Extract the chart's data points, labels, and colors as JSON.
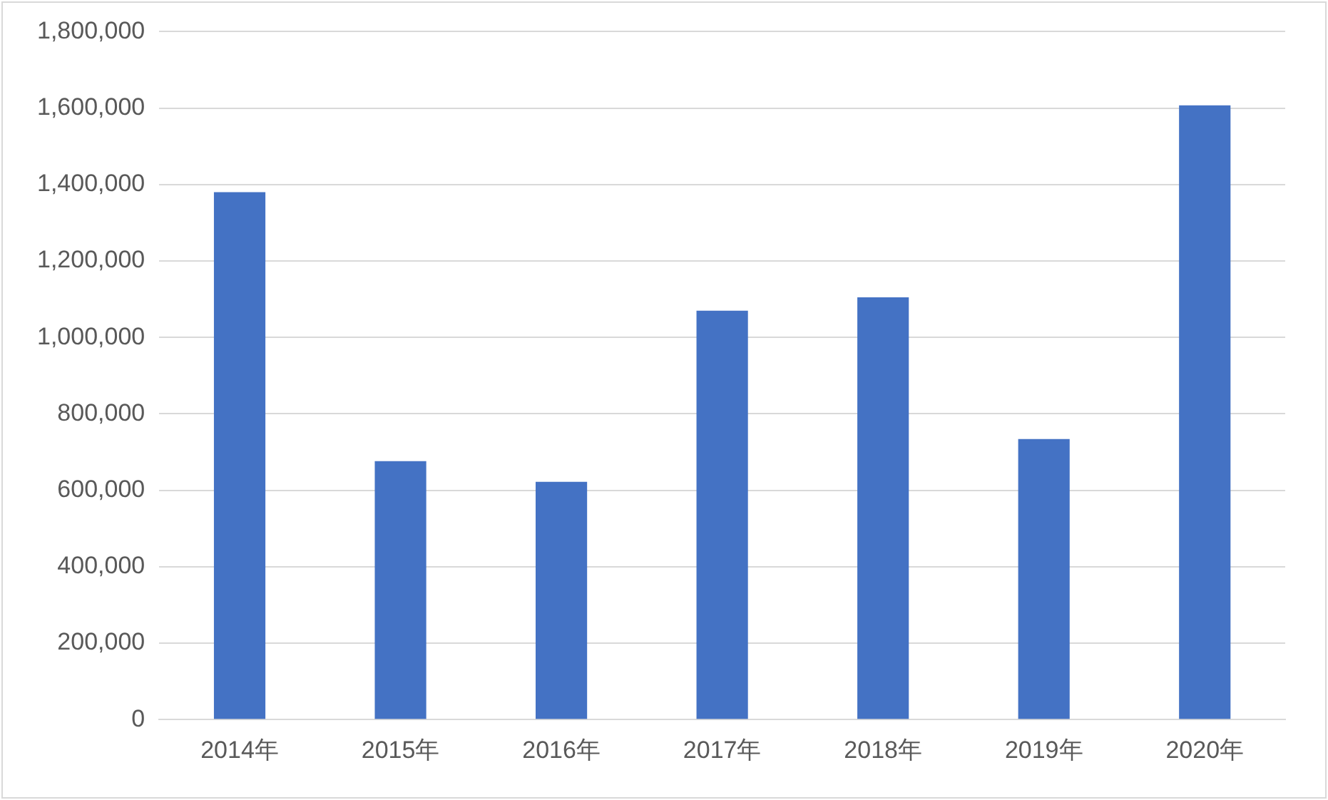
{
  "chart_data": {
    "type": "bar",
    "categories": [
      "2014年",
      "2015年",
      "2016年",
      "2017年",
      "2018年",
      "2019年",
      "2020年"
    ],
    "values": [
      1380000,
      676000,
      622000,
      1070000,
      1105000,
      734000,
      1607000
    ],
    "color": "#4472c4",
    "ylim": [
      0,
      1800000
    ],
    "yticks": [
      0,
      {
        "value": 200000,
        "label": "200,000"
      },
      {
        "value": 400000,
        "label": "400,000"
      },
      {
        "value": 600000,
        "label": "600,000"
      },
      {
        "value": 800000,
        "label": "800,000"
      },
      {
        "value": 1000000,
        "label": "1,000,000"
      },
      {
        "value": 1200000,
        "label": "1,200,000"
      },
      {
        "value": 1400000,
        "label": "1,400,000"
      },
      {
        "value": 1600000,
        "label": "1,600,000"
      },
      {
        "value": 1800000,
        "label": "1,800,000"
      }
    ],
    "grid": "y",
    "legend": false
  }
}
